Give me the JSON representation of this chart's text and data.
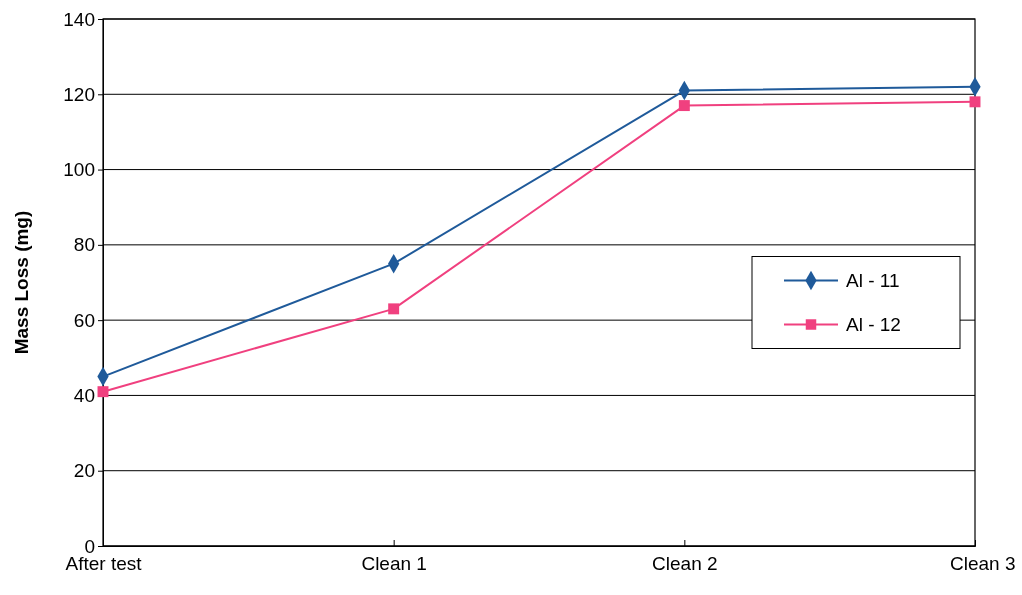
{
  "chart_data": {
    "type": "line",
    "ylabel": "Mass Loss (mg)",
    "categories": [
      "After test",
      "Clean 1",
      "Clean 2",
      "Clean 3"
    ],
    "series": [
      {
        "name": "Al - 11",
        "color": "#1f5a9a",
        "values": [
          45,
          75,
          121,
          122
        ],
        "marker": "diamond"
      },
      {
        "name": "Al - 12",
        "color": "#f0407f",
        "values": [
          41,
          63,
          117,
          118
        ],
        "marker": "square"
      }
    ],
    "ylim": [
      0,
      140
    ],
    "yticks": [
      0,
      20,
      40,
      60,
      80,
      100,
      120,
      140
    ],
    "grid": "y",
    "legend": "right",
    "line_style": "solid"
  }
}
